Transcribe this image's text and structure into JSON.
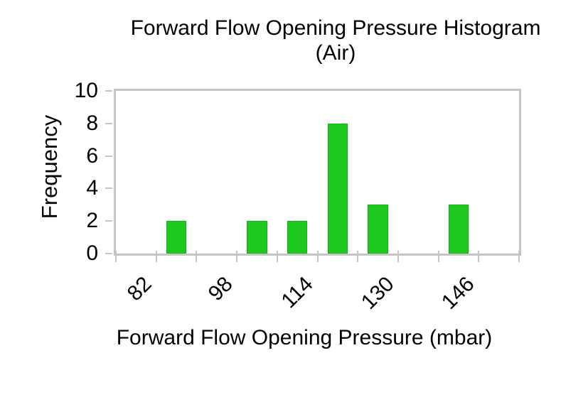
{
  "title": {
    "line1": "Forward Flow Opening Pressure Histogram",
    "line2": "(Air)"
  },
  "y_axis": {
    "label": "Frequency",
    "ticks": [
      0,
      2,
      4,
      6,
      8,
      10
    ]
  },
  "x_axis": {
    "label": "Forward Flow Opening Pressure (mbar)",
    "tick_labels": [
      "82",
      "98",
      "114",
      "130",
      "146"
    ]
  },
  "colors": {
    "bar_fill": "#1ec81e",
    "bar_border": "#15b215",
    "axis_gray": "#c5c5c5",
    "text": "#000000"
  },
  "chart_data": {
    "type": "bar",
    "title": "Forward Flow Opening Pressure Histogram (Air)",
    "xlabel": "Forward Flow Opening Pressure (mbar)",
    "ylabel": "Frequency",
    "bin_width_mbar": 8,
    "categories": [
      82,
      90,
      98,
      106,
      114,
      122,
      130,
      138,
      146,
      154
    ],
    "values": [
      0,
      2,
      0,
      2,
      2,
      8,
      3,
      0,
      3,
      0
    ],
    "labeled_categories": [
      82,
      98,
      114,
      130,
      146
    ],
    "ylim": [
      0,
      10
    ],
    "y_ticks": [
      0,
      2,
      4,
      6,
      8,
      10
    ],
    "grid": false,
    "legend": false,
    "bar_gap_fraction": 0.5,
    "bar_color": "#1ec81e"
  }
}
